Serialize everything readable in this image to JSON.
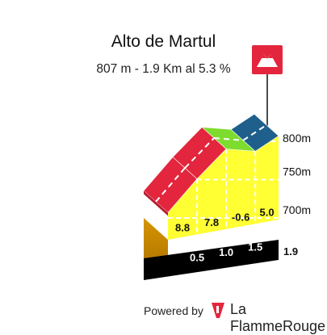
{
  "title": "Alto de Martul",
  "subtitle": "807 m - 1.9 Km al 5.3 %",
  "footer": {
    "powered_label": "Powered by",
    "brand": "La FlammeRouge",
    "logo_icon": "flamme-rouge-logo-icon"
  },
  "summit_icon": "mountain-flag-icon",
  "colors": {
    "grade_8_8": "#e3263d",
    "grade_7_8": "#e3263d",
    "grade_neg_0_6": "#7ddc2e",
    "grade_5_0": "#1f5f8b",
    "wall": "#ffff33",
    "base": "#c78a00",
    "km_band": "#000000",
    "flag": "#e3263d"
  },
  "chart_data": {
    "type": "area",
    "title": "Alto de Martul",
    "subtitle": "807 m - 1.9 Km al 5.3 %",
    "segments": [
      {
        "km_end": 0.5,
        "grade": 8.8,
        "grade_label": "8.8",
        "color": "#e3263d"
      },
      {
        "km_end": 1.0,
        "grade": 7.8,
        "grade_label": "7.8",
        "color": "#e3263d"
      },
      {
        "km_end": 1.5,
        "grade": -0.6,
        "grade_label": "-0.6",
        "color": "#7ddc2e"
      },
      {
        "km_end": 1.9,
        "grade": 5.0,
        "grade_label": "5.0",
        "color": "#1f5f8b"
      }
    ],
    "km_labels": [
      "0.5",
      "1.0",
      "1.5",
      "1.9"
    ],
    "profile": {
      "x_km": [
        0,
        0.5,
        1.0,
        1.5,
        1.9
      ],
      "elevation_m": [
        707,
        751,
        790,
        787,
        807
      ]
    },
    "y_ticks": [
      {
        "value": 700,
        "label": "700m"
      },
      {
        "value": 750,
        "label": "750m"
      },
      {
        "value": 800,
        "label": "800m"
      }
    ],
    "ylim": [
      700,
      810
    ],
    "xlim": [
      0,
      1.9
    ],
    "grid": true
  }
}
